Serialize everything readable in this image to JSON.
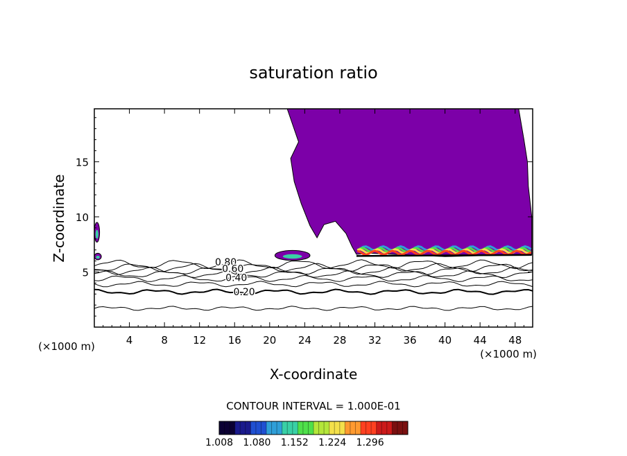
{
  "chart_data": {
    "type": "contour",
    "title": "saturation ratio",
    "xlabel": "X-coordinate",
    "ylabel": "Z-coordinate",
    "x_unit_label": "(×1000 m)",
    "y_unit_label": "(×1000 m)",
    "xlim": [
      0,
      50
    ],
    "ylim": [
      0,
      19.8
    ],
    "x_ticks": [
      4,
      8,
      12,
      16,
      20,
      24,
      28,
      32,
      36,
      40,
      44,
      48
    ],
    "y_ticks": [
      5,
      10,
      15
    ],
    "contour_interval_text": "CONTOUR INTERVAL = 1.000E-01",
    "contour_labels": [
      {
        "text": "0.80",
        "x": 15.0,
        "y": 5.9
      },
      {
        "text": "0.60",
        "x": 15.8,
        "y": 5.3
      },
      {
        "text": "0.40",
        "x": 16.2,
        "y": 4.5
      },
      {
        "text": "0.20",
        "x": 17.1,
        "y": 3.2
      }
    ],
    "contour_levels_z": [
      1.7,
      3.2,
      3.9,
      4.4,
      4.8,
      5.1,
      5.4,
      5.7
    ],
    "cloud_region": {
      "color": "#7c00a8",
      "outline": [
        [
          22.0,
          19.8
        ],
        [
          23.3,
          16.8
        ],
        [
          22.4,
          15.3
        ],
        [
          22.8,
          13.2
        ],
        [
          23.6,
          11.2
        ],
        [
          24.6,
          9.2
        ],
        [
          25.4,
          8.1
        ],
        [
          26.2,
          9.3
        ],
        [
          27.5,
          9.6
        ],
        [
          28.7,
          8.5
        ],
        [
          29.4,
          7.3
        ],
        [
          29.9,
          6.6
        ],
        [
          31.5,
          6.7
        ],
        [
          40.0,
          6.4
        ],
        [
          49.9,
          6.6
        ],
        [
          49.9,
          10.0
        ],
        [
          49.5,
          12.8
        ],
        [
          49.4,
          15.0
        ],
        [
          49.0,
          17.0
        ],
        [
          48.4,
          19.8
        ]
      ]
    },
    "small_clouds": [
      {
        "x": 22.6,
        "z": 6.5,
        "w": 4.0,
        "h": 0.9
      },
      {
        "x": 0.4,
        "z": 6.4,
        "w": 0.8,
        "h": 0.6
      },
      {
        "x": 0.3,
        "z": 8.6,
        "w": 0.6,
        "h": 1.8
      }
    ],
    "colorbar": {
      "tick_labels": [
        "1.008",
        "1.080",
        "1.152",
        "1.224",
        "1.296"
      ],
      "min": 1.008,
      "max": 1.368,
      "colors": [
        "#0b0033",
        "#1a1a8c",
        "#1f4fd1",
        "#2f9fd8",
        "#39d0a6",
        "#4fe04a",
        "#b4e63a",
        "#f4e04a",
        "#ff9a2f",
        "#ff4020",
        "#cc1a1a",
        "#7a1010"
      ]
    }
  }
}
